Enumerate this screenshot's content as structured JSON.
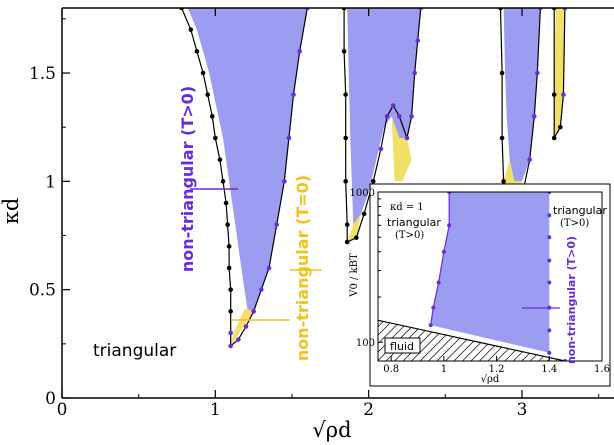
{
  "colors": {
    "non_triangular_positive": "#9c9cf0",
    "non_triangular_zero": "#f2e066",
    "purple_text": "#6a2bd9",
    "gold_text": "#f2c21d",
    "boundary": "#000000",
    "purple_dots": "#6a2bd9"
  },
  "chart_data": [
    {
      "type": "area",
      "title": "",
      "xlabel": "√ρd",
      "ylabel": "κd",
      "xlim": [
        0,
        3.6
      ],
      "ylim": [
        0,
        1.8
      ],
      "xticks": [
        0,
        1,
        2,
        3
      ],
      "xtick_labels": [
        "0",
        "1",
        "2",
        "3"
      ],
      "yticks": [
        0,
        0.5,
        1,
        1.5
      ],
      "ytick_labels": [
        "0",
        "0.5",
        "1",
        "1.5"
      ],
      "grid": false,
      "regions": [
        {
          "name": "non-triangular (T>0)",
          "color": "#9c9cf0",
          "polygons": [
            [
              [
                0.82,
                1.8
              ],
              [
                0.88,
                1.7
              ],
              [
                0.92,
                1.6
              ],
              [
                0.96,
                1.5
              ],
              [
                0.99,
                1.4
              ],
              [
                1.02,
                1.3
              ],
              [
                1.05,
                1.2
              ],
              [
                1.07,
                1.1
              ],
              [
                1.09,
                1.0
              ],
              [
                1.11,
                0.9
              ],
              [
                1.13,
                0.8
              ],
              [
                1.15,
                0.7
              ],
              [
                1.17,
                0.6
              ],
              [
                1.19,
                0.5
              ],
              [
                1.21,
                0.41
              ],
              [
                1.25,
                0.4
              ],
              [
                1.3,
                0.5
              ],
              [
                1.35,
                0.6
              ],
              [
                1.4,
                0.8
              ],
              [
                1.45,
                1.0
              ],
              [
                1.48,
                1.2
              ],
              [
                1.51,
                1.4
              ],
              [
                1.55,
                1.6
              ],
              [
                1.6,
                1.8
              ]
            ],
            [
              [
                1.86,
                1.8
              ],
              [
                1.87,
                1.5
              ],
              [
                1.88,
                1.2
              ],
              [
                1.89,
                1.0
              ],
              [
                1.9,
                0.8
              ],
              [
                1.95,
                0.85
              ],
              [
                2.0,
                0.95
              ],
              [
                2.05,
                1.1
              ],
              [
                2.1,
                1.25
              ],
              [
                2.15,
                1.3
              ],
              [
                2.2,
                1.2
              ],
              [
                2.25,
                1.2
              ],
              [
                2.28,
                1.3
              ],
              [
                2.3,
                1.5
              ],
              [
                2.32,
                1.65
              ],
              [
                2.34,
                1.8
              ]
            ],
            [
              [
                2.88,
                1.8
              ],
              [
                2.89,
                1.5
              ],
              [
                2.9,
                1.3
              ],
              [
                2.92,
                1.1
              ],
              [
                2.95,
                1.0
              ],
              [
                3.0,
                1.0
              ],
              [
                3.05,
                1.1
              ],
              [
                3.08,
                1.3
              ],
              [
                3.1,
                1.5
              ],
              [
                3.12,
                1.8
              ]
            ]
          ]
        },
        {
          "name": "non-triangular (T=0)",
          "color": "#f2e066",
          "polygons": [
            [
              [
                1.19,
                0.41
              ],
              [
                1.21,
                0.41
              ],
              [
                1.25,
                0.4
              ],
              [
                1.1,
                0.24
              ],
              [
                1.12,
                0.3
              ]
            ],
            [
              [
                1.86,
                0.72
              ],
              [
                1.9,
                0.8
              ],
              [
                1.95,
                0.85
              ],
              [
                1.92,
                0.74
              ]
            ],
            [
              [
                2.15,
                1.3
              ],
              [
                2.2,
                1.2
              ],
              [
                2.25,
                1.2
              ],
              [
                2.28,
                1.1
              ],
              [
                2.22,
                1.0
              ],
              [
                2.17,
                1.0
              ]
            ],
            [
              [
                2.88,
                1.0
              ],
              [
                2.92,
                1.1
              ],
              [
                2.95,
                1.0
              ],
              [
                3.0,
                1.0
              ],
              [
                3.0,
                0.93
              ],
              [
                2.92,
                0.92
              ],
              [
                2.89,
                0.96
              ]
            ],
            [
              [
                3.22,
                1.8
              ],
              [
                3.28,
                1.8
              ],
              [
                3.27,
                1.4
              ],
              [
                3.25,
                1.25
              ],
              [
                3.21,
                1.2
              ],
              [
                3.21,
                1.4
              ]
            ]
          ]
        }
      ],
      "boundary_lines": [
        [
          [
            0.78,
            1.8
          ],
          [
            0.84,
            1.7
          ],
          [
            0.88,
            1.6
          ],
          [
            0.92,
            1.5
          ],
          [
            0.95,
            1.4
          ],
          [
            0.98,
            1.3
          ],
          [
            1.0,
            1.2
          ],
          [
            1.03,
            1.1
          ],
          [
            1.05,
            1.0
          ],
          [
            1.07,
            0.9
          ],
          [
            1.08,
            0.8
          ],
          [
            1.09,
            0.7
          ],
          [
            1.09,
            0.6
          ],
          [
            1.1,
            0.5
          ],
          [
            1.1,
            0.4
          ],
          [
            1.1,
            0.3
          ],
          [
            1.1,
            0.24
          ],
          [
            1.15,
            0.27
          ],
          [
            1.2,
            0.33
          ],
          [
            1.25,
            0.4
          ],
          [
            1.3,
            0.5
          ],
          [
            1.35,
            0.6
          ],
          [
            1.4,
            0.8
          ],
          [
            1.45,
            1.0
          ],
          [
            1.48,
            1.2
          ],
          [
            1.51,
            1.4
          ],
          [
            1.55,
            1.6
          ],
          [
            1.6,
            1.8
          ]
        ],
        [
          [
            1.84,
            1.8
          ],
          [
            1.84,
            1.6
          ],
          [
            1.85,
            1.4
          ],
          [
            1.85,
            1.2
          ],
          [
            1.85,
            1.0
          ],
          [
            1.86,
            0.8
          ],
          [
            1.86,
            0.72
          ],
          [
            1.92,
            0.74
          ],
          [
            1.97,
            0.85
          ],
          [
            2.03,
            1.0
          ],
          [
            2.08,
            1.15
          ],
          [
            2.12,
            1.3
          ],
          [
            2.16,
            1.35
          ],
          [
            2.2,
            1.3
          ],
          [
            2.25,
            1.2
          ],
          [
            2.28,
            1.3
          ],
          [
            2.3,
            1.5
          ],
          [
            2.32,
            1.65
          ],
          [
            2.34,
            1.8
          ]
        ],
        [
          [
            2.86,
            1.8
          ],
          [
            2.87,
            1.5
          ],
          [
            2.87,
            1.2
          ],
          [
            2.88,
            1.0
          ],
          [
            2.9,
            0.92
          ],
          [
            2.95,
            0.92
          ],
          [
            3.0,
            0.93
          ],
          [
            3.05,
            1.1
          ],
          [
            3.08,
            1.3
          ],
          [
            3.1,
            1.5
          ],
          [
            3.12,
            1.8
          ]
        ],
        [
          [
            3.21,
            1.8
          ],
          [
            3.21,
            1.4
          ],
          [
            3.21,
            1.2
          ],
          [
            3.25,
            1.25
          ],
          [
            3.27,
            1.4
          ],
          [
            3.28,
            1.8
          ]
        ]
      ],
      "annotations": [
        {
          "text": "non-triangular (T>0)",
          "x": 0.75,
          "y": 1.1,
          "rotation": -90,
          "color": "#6a2bd9"
        },
        {
          "text": "non-triangular (T=0)",
          "x": 1.6,
          "y": 0.6,
          "rotation": -90,
          "color": "#f2c21d"
        },
        {
          "text": "triangular",
          "x": 0.22,
          "y": 0.22,
          "rotation": 0,
          "color": "#000000"
        }
      ]
    },
    {
      "type": "area",
      "title": "",
      "xlabel": "√ρd",
      "ylabel": "V0 / kBT",
      "xlim": [
        0.75,
        1.6
      ],
      "ylim": [
        75,
        1000
      ],
      "yscale": "log",
      "xticks": [
        0.8,
        1.0,
        1.2,
        1.4,
        1.6
      ],
      "xtick_labels": [
        "0.8",
        "1",
        "1.2",
        "1.4",
        "1.6"
      ],
      "yticks": [
        100,
        1000
      ],
      "ytick_labels": [
        "100",
        "1000"
      ],
      "annotations": [
        {
          "text": "κd = 1"
        },
        {
          "text": "triangular (T>0)",
          "side": "left"
        },
        {
          "text": "triangular (T>0)",
          "side": "right"
        },
        {
          "text": "non-triangular (T>0)"
        },
        {
          "text": "fluid"
        }
      ],
      "regions": [
        {
          "name": "non-triangular (T>0)",
          "color": "#9c9cf0",
          "points": [
            [
              1.02,
              1000
            ],
            [
              1.02,
              600
            ],
            [
              1.0,
              400
            ],
            [
              0.98,
              250
            ],
            [
              0.96,
              170
            ],
            [
              0.95,
              130
            ],
            [
              1.4,
              85
            ],
            [
              1.4,
              1000
            ]
          ]
        }
      ],
      "fluid_boundary": [
        [
          0.75,
          140
        ],
        [
          1.46,
          75
        ]
      ]
    }
  ],
  "labels": {
    "main_nt_positive": "non-triangular (T>0)",
    "main_nt_zero": "non-triangular (T=0)",
    "main_triangular": "triangular",
    "inset_kappa": "κd = 1",
    "inset_triangular_left_1": "triangular",
    "inset_triangular_left_2": "(T>0)",
    "inset_triangular_right_1": "triangular",
    "inset_triangular_right_2": "(T>0)",
    "inset_nt_positive": "non-triangular (T>0)",
    "inset_fluid": "fluid",
    "inset_ylabel": "V0 / kBT",
    "inset_xlabel": "√ρd"
  }
}
